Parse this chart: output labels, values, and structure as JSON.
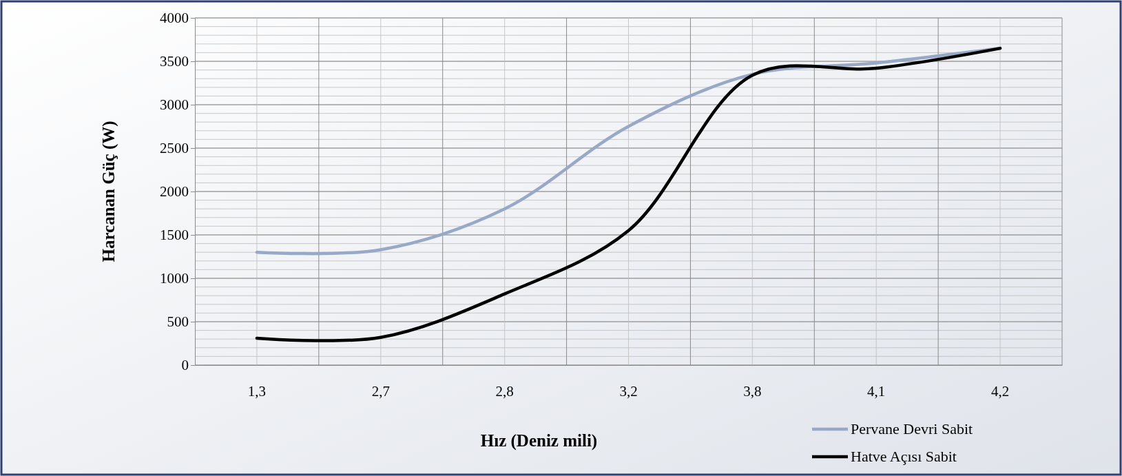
{
  "chart_data": {
    "type": "line",
    "xlabel": "Hız (Deniz mili)",
    "ylabel": "Harcanan Güç (W)",
    "categories": [
      "1,3",
      "2,7",
      "2,8",
      "3,2",
      "3,8",
      "4,1",
      "4,2"
    ],
    "series": [
      {
        "name": "Pervane Devri Sabit",
        "color": "#97a9c6",
        "values": [
          1300,
          1330,
          1800,
          2750,
          3350,
          3480,
          3650
        ]
      },
      {
        "name": "Hatve Açısı Sabit",
        "color": "#000000",
        "values": [
          310,
          320,
          820,
          1550,
          3340,
          3420,
          3650
        ]
      }
    ],
    "ylim": [
      0,
      4000
    ],
    "yticks": [
      0,
      500,
      1000,
      1500,
      2000,
      2500,
      3000,
      3500,
      4000
    ],
    "grid": true,
    "legend": "bottom right",
    "marker": "none",
    "line_style": "solid"
  }
}
